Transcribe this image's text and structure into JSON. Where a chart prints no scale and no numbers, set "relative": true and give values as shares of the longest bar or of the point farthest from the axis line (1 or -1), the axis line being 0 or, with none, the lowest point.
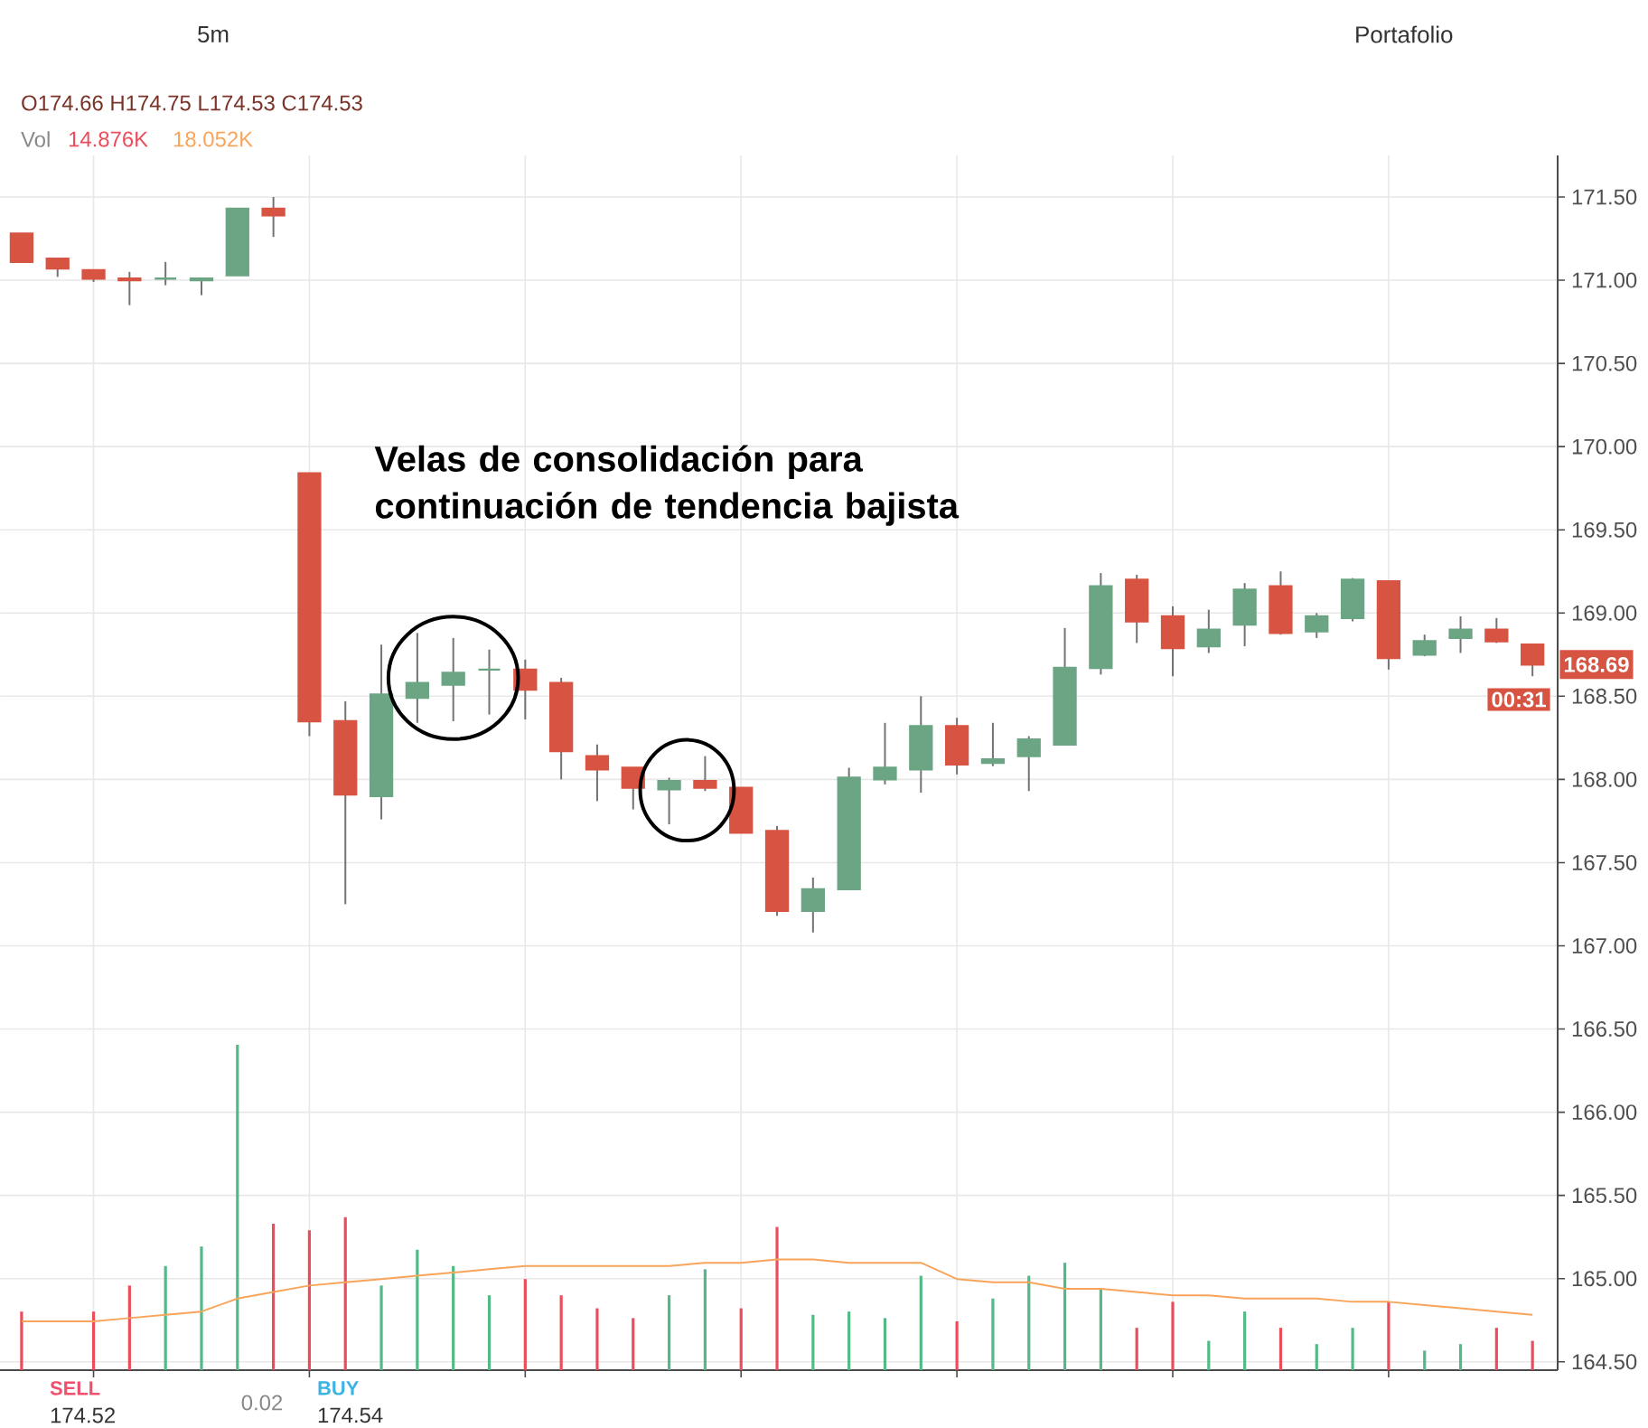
{
  "chart_data": [
    {
      "type": "candlestick",
      "categories": [
        null,
        null,
        null,
        null,
        null,
        null,
        null,
        null,
        null,
        null,
        null,
        null,
        null,
        null,
        null,
        null,
        null,
        null,
        null,
        null,
        null,
        null,
        null,
        null,
        null,
        null,
        null,
        null,
        null,
        null,
        null,
        null,
        null,
        null,
        null,
        null,
        null,
        null,
        null,
        null,
        null,
        null,
        null
      ],
      "ohlc": [
        [
          171.28,
          171.28,
          171.11,
          171.11
        ],
        [
          171.13,
          171.13,
          171.02,
          171.07
        ],
        [
          171.06,
          171.06,
          170.99,
          171.01
        ],
        [
          171.01,
          171.05,
          170.85,
          171.0
        ],
        [
          171.01,
          171.11,
          170.97,
          171.01
        ],
        [
          171.0,
          171.01,
          170.91,
          171.01
        ],
        [
          171.03,
          171.43,
          171.03,
          171.43
        ],
        [
          171.43,
          171.5,
          171.26,
          171.39
        ],
        [
          169.84,
          169.84,
          168.26,
          168.35
        ],
        [
          168.35,
          168.47,
          167.25,
          167.91
        ],
        [
          167.9,
          168.81,
          167.76,
          168.51
        ],
        [
          168.49,
          168.88,
          168.34,
          168.58
        ],
        [
          168.57,
          168.85,
          168.35,
          168.64
        ],
        [
          168.66,
          168.78,
          168.39,
          168.66
        ],
        [
          168.66,
          168.72,
          168.36,
          168.54
        ],
        [
          168.58,
          168.61,
          168.0,
          168.17
        ],
        [
          168.14,
          168.21,
          167.87,
          168.06
        ],
        [
          168.07,
          168.07,
          167.82,
          167.95
        ],
        [
          167.94,
          168.01,
          167.73,
          167.99
        ],
        [
          167.99,
          168.14,
          167.93,
          167.95
        ],
        [
          167.95,
          167.95,
          167.68,
          167.68
        ],
        [
          167.69,
          167.72,
          167.18,
          167.21
        ],
        [
          167.21,
          167.41,
          167.08,
          167.34
        ],
        [
          167.34,
          168.07,
          167.34,
          168.01
        ],
        [
          168.0,
          168.34,
          167.97,
          168.07
        ],
        [
          168.06,
          168.5,
          167.92,
          168.32
        ],
        [
          168.32,
          168.37,
          168.03,
          168.09
        ],
        [
          168.1,
          168.34,
          168.08,
          168.12
        ],
        [
          168.14,
          168.26,
          167.93,
          168.24
        ],
        [
          168.21,
          168.91,
          168.21,
          168.67
        ],
        [
          168.67,
          169.24,
          168.63,
          169.16
        ],
        [
          169.2,
          169.23,
          168.82,
          168.95
        ],
        [
          168.98,
          169.04,
          168.62,
          168.79
        ],
        [
          168.8,
          169.02,
          168.76,
          168.9
        ],
        [
          168.93,
          169.18,
          168.8,
          169.14
        ],
        [
          169.16,
          169.25,
          168.87,
          168.88
        ],
        [
          168.89,
          169.0,
          168.85,
          168.98
        ],
        [
          168.97,
          169.21,
          168.95,
          169.2
        ],
        [
          169.19,
          169.19,
          168.66,
          168.73
        ],
        [
          168.75,
          168.87,
          168.74,
          168.83
        ],
        [
          168.85,
          168.98,
          168.76,
          168.9
        ],
        [
          168.9,
          168.97,
          168.82,
          168.83
        ],
        [
          168.81,
          168.81,
          168.62,
          168.69
        ]
      ],
      "colors": [
        "#d75442",
        "#d75442",
        "#d75442",
        "#d75442",
        "#6ba583",
        "#6ba583",
        "#6ba583",
        "#d75442",
        "#d75442",
        "#d75442",
        "#6ba583",
        "#6ba583",
        "#6ba583",
        "#6ba583",
        "#d75442",
        "#d75442",
        "#d75442",
        "#d75442",
        "#6ba583",
        "#d75442",
        "#d75442",
        "#d75442",
        "#6ba583",
        "#6ba583",
        "#6ba583",
        "#6ba583",
        "#d75442",
        "#6ba583",
        "#6ba583",
        "#6ba583",
        "#6ba583",
        "#d75442",
        "#d75442",
        "#6ba583",
        "#6ba583",
        "#d75442",
        "#6ba583",
        "#6ba583",
        "#d75442",
        "#6ba583",
        "#6ba583",
        "#d75442",
        "#d75442"
      ],
      "ylim": [
        164.45,
        171.75
      ],
      "yticks": [
        {
          "value": 164.5,
          "label": "164.50"
        },
        {
          "value": 165,
          "label": "165.00"
        },
        {
          "value": 165.5,
          "label": "165.50"
        },
        {
          "value": 166,
          "label": "166.00"
        },
        {
          "value": 166.5,
          "label": "166.50"
        },
        {
          "value": 167,
          "label": "167.00"
        },
        {
          "value": 167.5,
          "label": "167.50"
        },
        {
          "value": 168,
          "label": "168.00"
        },
        {
          "value": 168.5,
          "label": "168.50"
        },
        {
          "value": 169,
          "label": "169.00"
        },
        {
          "value": 169.5,
          "label": "169.50"
        },
        {
          "value": 170,
          "label": "170.00"
        },
        {
          "value": 170.5,
          "label": "170.50"
        },
        {
          "value": 171,
          "label": "171.00"
        },
        {
          "value": 171.5,
          "label": "171.50"
        }
      ],
      "grid": true,
      "tick_labels": "y",
      "annotations": [
        "5m",
        "Portafolio",
        "O174.66 H174.75 L174.53 C174.53",
        "Velas de consolidación para continuación de tendencia bajista",
        {
          "text": "168.69",
          "y": 168.69
        },
        "00:31",
        "SELL",
        "174.52",
        "0.02",
        "BUY",
        "174.54"
      ]
    },
    {
      "type": "bar",
      "relative": true,
      "categories": [
        null,
        null,
        null,
        null,
        null,
        null,
        null,
        null,
        null,
        null,
        null,
        null,
        null,
        null,
        null,
        null,
        null,
        null,
        null,
        null,
        null,
        null,
        null,
        null,
        null,
        null,
        null,
        null,
        null,
        null,
        null,
        null,
        null,
        null,
        null,
        null,
        null,
        null,
        null,
        null,
        null,
        null,
        null
      ],
      "series": [
        {
          "values": [
            0.18,
            null,
            0.18,
            0.26,
            0.32,
            0.38,
            1,
            0.45,
            0.43,
            0.47,
            0.26,
            0.37,
            0.32,
            0.23,
            0.28,
            0.23,
            0.19,
            0.16,
            0.23,
            0.31,
            0.19,
            0.44,
            0.17,
            0.18,
            0.16,
            0.29,
            0.15,
            0.22,
            0.29,
            0.33,
            0.25,
            0.13,
            0.21,
            0.09,
            0.18,
            0.13,
            0.08,
            0.13,
            0.21,
            0.06,
            0.08,
            0.13,
            0.09
          ],
          "colors": [
            "#eb4d5c",
            null,
            "#eb4d5c",
            "#eb4d5c",
            "#53b987",
            "#53b987",
            "#53b987",
            "#eb4d5c",
            "#eb4d5c",
            "#eb4d5c",
            "#53b987",
            "#53b987",
            "#53b987",
            "#53b987",
            "#eb4d5c",
            "#eb4d5c",
            "#eb4d5c",
            "#eb4d5c",
            "#53b987",
            "#53b987",
            "#eb4d5c",
            "#eb4d5c",
            "#53b987",
            "#53b987",
            "#53b987",
            "#53b987",
            "#eb4d5c",
            "#53b987",
            "#53b987",
            "#53b987",
            "#53b987",
            "#eb4d5c",
            "#eb4d5c",
            "#53b987",
            "#53b987",
            "#eb4d5c",
            "#53b987",
            "#53b987",
            "#eb4d5c",
            "#53b987",
            "#53b987",
            "#eb4d5c",
            "#eb4d5c"
          ]
        },
        {
          "type": "line",
          "color": "#f8a55b",
          "values": [
            0.15,
            0.15,
            0.15,
            0.16,
            0.17,
            0.18,
            0.22,
            0.24,
            0.26,
            0.27,
            0.28,
            0.29,
            0.3,
            0.31,
            0.32,
            0.32,
            0.32,
            0.32,
            0.32,
            0.33,
            0.33,
            0.34,
            0.34,
            0.33,
            0.33,
            0.33,
            0.28,
            0.27,
            0.27,
            0.25,
            0.25,
            0.24,
            0.23,
            0.23,
            0.22,
            0.22,
            0.22,
            0.21,
            0.21,
            0.2,
            0.19,
            0.18,
            0.17
          ]
        }
      ],
      "annotations": [
        "Vol",
        "14.876K",
        "18.052K"
      ]
    }
  ]
}
